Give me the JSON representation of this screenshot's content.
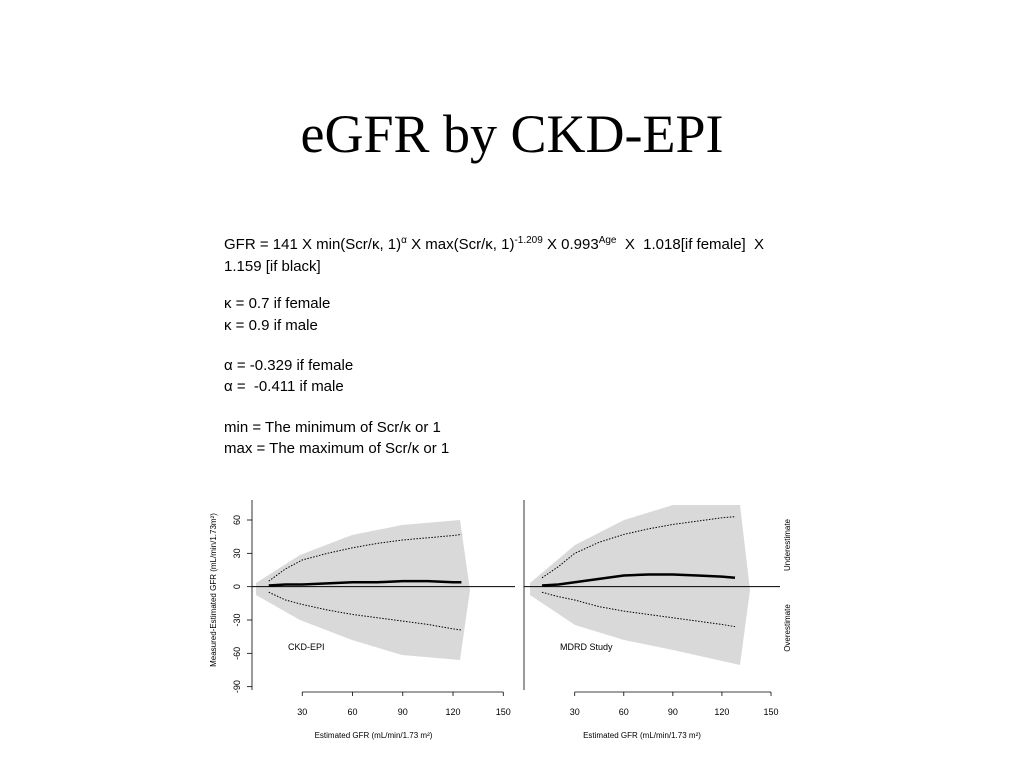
{
  "title": "eGFR by CKD-EPI",
  "formula": {
    "parts": [
      "GFR = 141 X min(Scr/κ, 1)",
      "α",
      " X max(Scr/κ, 1)",
      "-1.209",
      " X 0.993",
      "Age",
      "  X  1.018[if female]  X"
    ],
    "line2": "1.159 [if black]"
  },
  "definitions": [
    [
      "κ = 0.7 if female",
      "κ = 0.9 if male"
    ],
    [
      "α = -0.329 if female",
      "α =  -0.411 if male"
    ],
    [
      "min = The minimum of Scr/κ or 1",
      "max = The maximum of Scr/κ or 1"
    ]
  ],
  "chart_data": [
    {
      "type": "line",
      "annotation": "CKD-EPI",
      "xlabel": "Estimated GFR (mL/min/1.73 m²)",
      "ylabel": "Measured-Estimated GFR (mL/min/1.73m²)",
      "x": [
        10,
        20,
        30,
        45,
        60,
        75,
        90,
        105,
        120,
        125
      ],
      "series": [
        {
          "color": "#000000",
          "line_style": "solid",
          "values": [
            1,
            2,
            2,
            3,
            4,
            4,
            5,
            5,
            4,
            4
          ]
        },
        {
          "color": "#000000",
          "line_style": "dotted",
          "values": [
            5,
            16,
            24,
            30,
            35,
            39,
            42,
            44,
            46,
            47
          ]
        },
        {
          "color": "#000000",
          "line_style": "dotted",
          "values": [
            -5,
            -12,
            -16,
            -21,
            -25,
            -28,
            -31,
            -34,
            -38,
            -39
          ]
        }
      ],
      "xlim": [
        0,
        157
      ],
      "xticks": [
        30,
        60,
        90,
        120,
        150
      ],
      "ylim": [
        -93,
        78
      ],
      "yticks": [
        60,
        30,
        0,
        -30,
        -60,
        -90
      ]
    },
    {
      "type": "line",
      "annotation": "MDRD Study",
      "xlabel": "Estimated GFR (mL/min/1.73 m²)",
      "right_labels": [
        "Underestimate",
        "Overestimate"
      ],
      "x": [
        10,
        20,
        30,
        45,
        60,
        75,
        90,
        105,
        120,
        128
      ],
      "series": [
        {
          "color": "#000000",
          "line_style": "solid",
          "values": [
            1,
            2,
            4,
            7,
            10,
            11,
            11,
            10,
            9,
            8
          ]
        },
        {
          "color": "#000000",
          "line_style": "dotted",
          "values": [
            8,
            18,
            30,
            40,
            47,
            52,
            56,
            59,
            62,
            63
          ]
        },
        {
          "color": "#000000",
          "line_style": "dotted",
          "values": [
            -5,
            -9,
            -12,
            -18,
            -22,
            -25,
            -28,
            -31,
            -34,
            -36
          ]
        }
      ],
      "xlim": [
        -1,
        155.5
      ],
      "xticks": [
        30,
        60,
        90,
        120,
        150
      ],
      "ylim": [
        -93,
        78
      ]
    }
  ]
}
